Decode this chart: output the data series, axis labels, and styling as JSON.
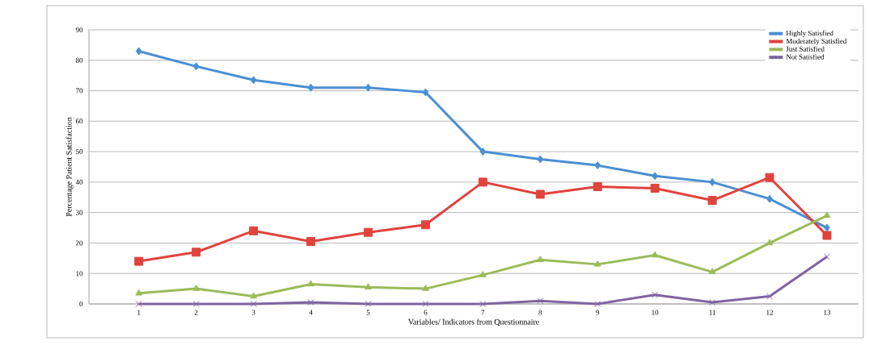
{
  "chart_data": {
    "type": "line",
    "xlabel": "Variables/ Indicators from Questionnaire",
    "ylabel": "Percentage Patient Satisfaction",
    "categories": [
      "1",
      "2",
      "3",
      "4",
      "5",
      "6",
      "7",
      "8",
      "9",
      "10",
      "11",
      "12",
      "13"
    ],
    "ylim": [
      0,
      90
    ],
    "yticks": [
      0,
      10,
      20,
      30,
      40,
      50,
      60,
      70,
      80,
      90
    ],
    "grid": "y",
    "legend": "top right",
    "series": [
      {
        "name": "Highly Satisfied",
        "color": "#4a8fd4",
        "marker": "diamond",
        "values": [
          83,
          78,
          73.5,
          71,
          71,
          69.5,
          50,
          47.5,
          45.5,
          42,
          40,
          34.5,
          25
        ]
      },
      {
        "name": "Moderately Satisfied",
        "color": "#e0433c",
        "marker": "square",
        "values": [
          14,
          17,
          24,
          20.5,
          23.5,
          26,
          40,
          36,
          38.5,
          38,
          34,
          41.5,
          22.5
        ]
      },
      {
        "name": "Just Satisfied",
        "color": "#9bbb59",
        "marker": "triangle",
        "values": [
          3.5,
          5,
          2.5,
          6.5,
          5.5,
          5,
          9.5,
          14.5,
          13,
          16,
          10.5,
          20,
          29
        ]
      },
      {
        "name": "Not Satisfied",
        "color": "#8064a2",
        "marker": "cross",
        "values": [
          0,
          0,
          0,
          0.5,
          0,
          0,
          0,
          1,
          0,
          3,
          0.5,
          2.5,
          15.5
        ]
      }
    ]
  }
}
